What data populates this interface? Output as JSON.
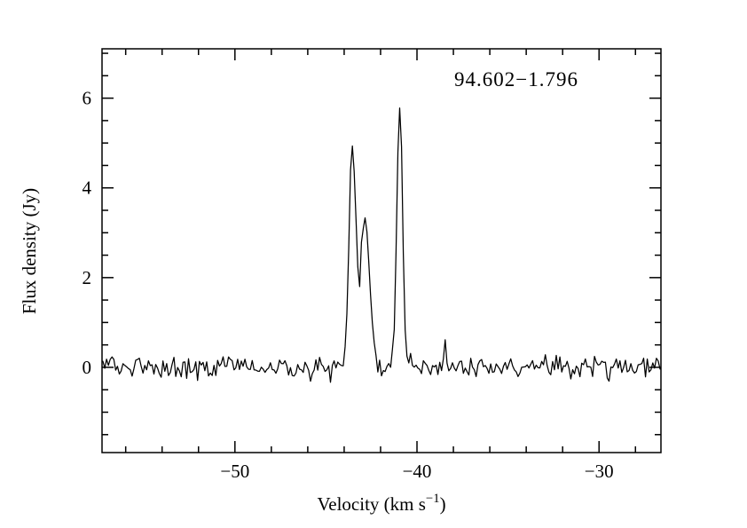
{
  "chart_data": {
    "type": "line",
    "title": "94.602−1.796",
    "ylabel": "Flux density (Jy)",
    "xlabel_parts": {
      "main": "Velocity (km s",
      "sup": "−1",
      "end": ")"
    },
    "xlim": [
      -57.3,
      -26.6
    ],
    "ylim": [
      -1.9,
      7.1
    ],
    "x_ticks_major": [
      -50,
      -40,
      -30
    ],
    "x_tick_labels": [
      "−50",
      "−40",
      "−30"
    ],
    "x_minor_step": 2,
    "y_ticks_major": [
      0,
      2,
      4,
      6
    ],
    "y_tick_labels": [
      "0",
      "2",
      "4",
      "6"
    ],
    "y_minor_step": 0.5,
    "baseline_level": 0,
    "noise_rms": 0.12,
    "channel_width": 0.1,
    "peaks": [
      {
        "center": -43.55,
        "amplitude": 4.9,
        "fwhm": 0.42
      },
      {
        "center": -42.85,
        "amplitude": 3.35,
        "fwhm": 0.6
      },
      {
        "center": -40.95,
        "amplitude": 5.9,
        "fwhm": 0.36
      },
      {
        "center": -38.45,
        "amplitude": 0.5,
        "fwhm": 0.15
      }
    ],
    "line_color": "#000000",
    "grid": "off",
    "legend": "none"
  }
}
